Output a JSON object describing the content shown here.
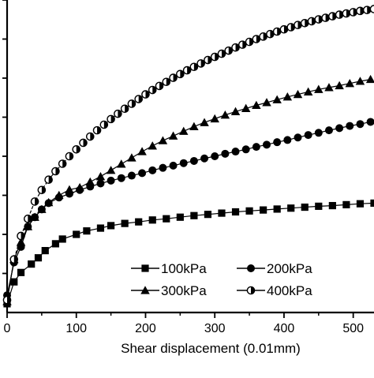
{
  "chart_data": {
    "type": "line",
    "xlabel": "Shear displacement (0.01mm)",
    "xlim": [
      0,
      530
    ],
    "ylim": [
      0,
      1
    ],
    "x_ticks": [
      0,
      100,
      200,
      300,
      400,
      500
    ],
    "y_minor_ticks": [
      0.125,
      0.25,
      0.375,
      0.5,
      0.625,
      0.75,
      0.875,
      1.0
    ],
    "legend_position": "bottom-right",
    "series": [
      {
        "name": "100kPa",
        "marker": "square",
        "points": [
          [
            0,
            0.028
          ],
          [
            10,
            0.098
          ],
          [
            20,
            0.128
          ],
          [
            35,
            0.155
          ],
          [
            45,
            0.175
          ],
          [
            55,
            0.198
          ],
          [
            70,
            0.22
          ],
          [
            80,
            0.235
          ],
          [
            100,
            0.25
          ],
          [
            115,
            0.261
          ],
          [
            135,
            0.27
          ],
          [
            150,
            0.278
          ],
          [
            170,
            0.285
          ],
          [
            190,
            0.29
          ],
          [
            210,
            0.296
          ],
          [
            230,
            0.3
          ],
          [
            250,
            0.305
          ],
          [
            270,
            0.31
          ],
          [
            290,
            0.314
          ],
          [
            310,
            0.318
          ],
          [
            330,
            0.322
          ],
          [
            350,
            0.325
          ],
          [
            370,
            0.328
          ],
          [
            390,
            0.331
          ],
          [
            410,
            0.334
          ],
          [
            430,
            0.337
          ],
          [
            450,
            0.34
          ],
          [
            470,
            0.342
          ],
          [
            490,
            0.345
          ],
          [
            510,
            0.348
          ],
          [
            530,
            0.35
          ]
        ]
      },
      {
        "name": "200kPa",
        "marker": "circle",
        "points": [
          [
            0,
            0.055
          ],
          [
            10,
            0.16
          ],
          [
            20,
            0.21
          ],
          [
            30,
            0.275
          ],
          [
            40,
            0.305
          ],
          [
            50,
            0.33
          ],
          [
            60,
            0.35
          ],
          [
            75,
            0.368
          ],
          [
            90,
            0.38
          ],
          [
            105,
            0.392
          ],
          [
            120,
            0.403
          ],
          [
            135,
            0.413
          ],
          [
            150,
            0.422
          ],
          [
            165,
            0.43
          ],
          [
            180,
            0.438
          ],
          [
            195,
            0.446
          ],
          [
            210,
            0.455
          ],
          [
            225,
            0.463
          ],
          [
            240,
            0.47
          ],
          [
            255,
            0.478
          ],
          [
            270,
            0.485
          ],
          [
            285,
            0.493
          ],
          [
            300,
            0.5
          ],
          [
            315,
            0.508
          ],
          [
            330,
            0.515
          ],
          [
            345,
            0.522
          ],
          [
            360,
            0.53
          ],
          [
            375,
            0.537
          ],
          [
            390,
            0.545
          ],
          [
            405,
            0.552
          ],
          [
            420,
            0.56
          ],
          [
            435,
            0.568
          ],
          [
            450,
            0.575
          ],
          [
            465,
            0.583
          ],
          [
            480,
            0.59
          ],
          [
            495,
            0.597
          ],
          [
            510,
            0.603
          ],
          [
            525,
            0.61
          ]
        ]
      },
      {
        "name": "300kPa",
        "marker": "triangle",
        "points": [
          [
            0,
            0.035
          ],
          [
            10,
            0.17
          ],
          [
            20,
            0.225
          ],
          [
            30,
            0.275
          ],
          [
            40,
            0.305
          ],
          [
            50,
            0.33
          ],
          [
            60,
            0.352
          ],
          [
            75,
            0.375
          ],
          [
            90,
            0.393
          ],
          [
            105,
            0.4
          ],
          [
            120,
            0.418
          ],
          [
            135,
            0.435
          ],
          [
            150,
            0.455
          ],
          [
            165,
            0.475
          ],
          [
            180,
            0.495
          ],
          [
            195,
            0.515
          ],
          [
            210,
            0.533
          ],
          [
            225,
            0.55
          ],
          [
            240,
            0.565
          ],
          [
            255,
            0.58
          ],
          [
            270,
            0.595
          ],
          [
            285,
            0.608
          ],
          [
            300,
            0.62
          ],
          [
            315,
            0.632
          ],
          [
            330,
            0.643
          ],
          [
            345,
            0.653
          ],
          [
            360,
            0.663
          ],
          [
            375,
            0.672
          ],
          [
            390,
            0.681
          ],
          [
            405,
            0.69
          ],
          [
            420,
            0.698
          ],
          [
            435,
            0.706
          ],
          [
            450,
            0.714
          ],
          [
            465,
            0.72
          ],
          [
            480,
            0.726
          ],
          [
            495,
            0.733
          ],
          [
            510,
            0.74
          ],
          [
            525,
            0.746
          ]
        ]
      },
      {
        "name": "400kPa",
        "marker": "half-filled-circle",
        "points": [
          [
            0,
            0.04
          ],
          [
            10,
            0.17
          ],
          [
            20,
            0.245
          ],
          [
            30,
            0.3
          ],
          [
            40,
            0.355
          ],
          [
            50,
            0.392
          ],
          [
            60,
            0.425
          ],
          [
            70,
            0.452
          ],
          [
            80,
            0.476
          ],
          [
            90,
            0.5
          ],
          [
            100,
            0.522
          ],
          [
            110,
            0.543
          ],
          [
            120,
            0.563
          ],
          [
            130,
            0.583
          ],
          [
            140,
            0.601
          ],
          [
            150,
            0.619
          ],
          [
            160,
            0.636
          ],
          [
            170,
            0.652
          ],
          [
            180,
            0.668
          ],
          [
            190,
            0.683
          ],
          [
            200,
            0.698
          ],
          [
            210,
            0.712
          ],
          [
            220,
            0.725
          ],
          [
            230,
            0.738
          ],
          [
            240,
            0.751
          ],
          [
            250,
            0.763
          ],
          [
            260,
            0.775
          ],
          [
            270,
            0.786
          ],
          [
            280,
            0.797
          ],
          [
            290,
            0.808
          ],
          [
            300,
            0.818
          ],
          [
            310,
            0.828
          ],
          [
            320,
            0.838
          ],
          [
            330,
            0.848
          ],
          [
            340,
            0.857
          ],
          [
            350,
            0.866
          ],
          [
            360,
            0.875
          ],
          [
            370,
            0.883
          ],
          [
            380,
            0.891
          ],
          [
            390,
            0.899
          ],
          [
            400,
            0.906
          ],
          [
            410,
            0.913
          ],
          [
            420,
            0.92
          ],
          [
            430,
            0.926
          ],
          [
            440,
            0.932
          ],
          [
            450,
            0.938
          ],
          [
            460,
            0.943
          ],
          [
            470,
            0.948
          ],
          [
            480,
            0.953
          ],
          [
            490,
            0.957
          ],
          [
            500,
            0.961
          ],
          [
            510,
            0.965
          ],
          [
            520,
            0.968
          ],
          [
            530,
            0.971
          ]
        ]
      }
    ]
  }
}
